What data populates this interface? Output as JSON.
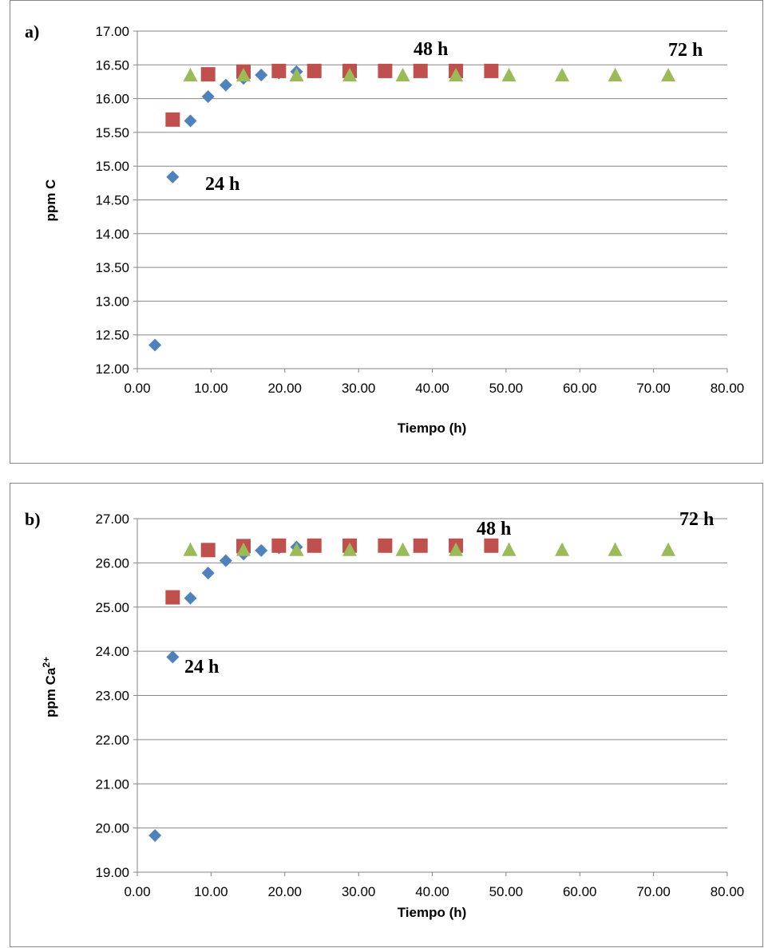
{
  "chart_data": [
    {
      "type": "scatter",
      "panel_label": "a)",
      "xlabel": "Tiempo (h)",
      "ylabel": "ppm C",
      "xlim": [
        0,
        80
      ],
      "ylim": [
        12,
        17
      ],
      "x_ticks": [
        "0.00",
        "10.00",
        "20.00",
        "30.00",
        "40.00",
        "50.00",
        "60.00",
        "70.00",
        "80.00"
      ],
      "y_ticks": [
        "12.00",
        "12.50",
        "13.00",
        "13.50",
        "14.00",
        "14.50",
        "15.00",
        "15.50",
        "16.00",
        "16.50",
        "17.00"
      ],
      "grid": "horizontal",
      "annotations": [
        "24 h",
        "48 h",
        "72 h"
      ],
      "series": [
        {
          "marker": "diamond",
          "color": "#4f81bd",
          "x": [
            2.4,
            4.8,
            7.2,
            9.6,
            12.0,
            14.4,
            16.8,
            19.2,
            21.6,
            24.0
          ],
          "y": [
            12.35,
            14.84,
            15.67,
            16.03,
            16.2,
            16.3,
            16.35,
            16.38,
            16.4,
            16.4
          ]
        },
        {
          "marker": "square",
          "color": "#c0504d",
          "x": [
            4.8,
            9.6,
            14.4,
            19.2,
            24.0,
            28.8,
            33.6,
            38.4,
            43.2,
            48.0
          ],
          "y": [
            15.69,
            16.36,
            16.4,
            16.41,
            16.41,
            16.41,
            16.41,
            16.41,
            16.41,
            16.41
          ]
        },
        {
          "marker": "triangle",
          "color": "#9bbb59",
          "x": [
            7.2,
            14.4,
            21.6,
            28.8,
            36.0,
            43.2,
            50.4,
            57.6,
            64.8,
            72.0
          ],
          "y": [
            16.35,
            16.35,
            16.35,
            16.35,
            16.35,
            16.35,
            16.35,
            16.35,
            16.35,
            16.35
          ]
        }
      ]
    },
    {
      "type": "scatter",
      "panel_label": "b)",
      "xlabel": "Tiempo (h)",
      "ylabel_main": "ppm Ca",
      "ylabel_sup": "2+",
      "xlim": [
        0,
        80
      ],
      "ylim": [
        19,
        27
      ],
      "x_ticks": [
        "0.00",
        "10.00",
        "20.00",
        "30.00",
        "40.00",
        "50.00",
        "60.00",
        "70.00",
        "80.00"
      ],
      "y_ticks": [
        "19.00",
        "20.00",
        "21.00",
        "22.00",
        "23.00",
        "24.00",
        "25.00",
        "26.00",
        "27.00"
      ],
      "grid": "horizontal",
      "annotations": [
        "24 h",
        "48 h",
        "72 h"
      ],
      "series": [
        {
          "marker": "diamond",
          "color": "#4f81bd",
          "x": [
            2.4,
            4.8,
            7.2,
            9.6,
            12.0,
            14.4,
            16.8,
            19.2,
            21.6,
            24.0
          ],
          "y": [
            19.83,
            23.87,
            25.2,
            25.77,
            26.05,
            26.2,
            26.28,
            26.34,
            26.36,
            26.38
          ]
        },
        {
          "marker": "square",
          "color": "#c0504d",
          "x": [
            4.8,
            9.6,
            14.4,
            19.2,
            24.0,
            28.8,
            33.6,
            38.4,
            43.2,
            48.0
          ],
          "y": [
            25.22,
            26.29,
            26.38,
            26.39,
            26.39,
            26.39,
            26.39,
            26.39,
            26.39,
            26.39
          ]
        },
        {
          "marker": "triangle",
          "color": "#9bbb59",
          "x": [
            7.2,
            14.4,
            21.6,
            28.8,
            36.0,
            43.2,
            50.4,
            57.6,
            64.8,
            72.0
          ],
          "y": [
            26.3,
            26.3,
            26.3,
            26.3,
            26.3,
            26.3,
            26.3,
            26.3,
            26.3,
            26.3
          ]
        }
      ]
    }
  ]
}
